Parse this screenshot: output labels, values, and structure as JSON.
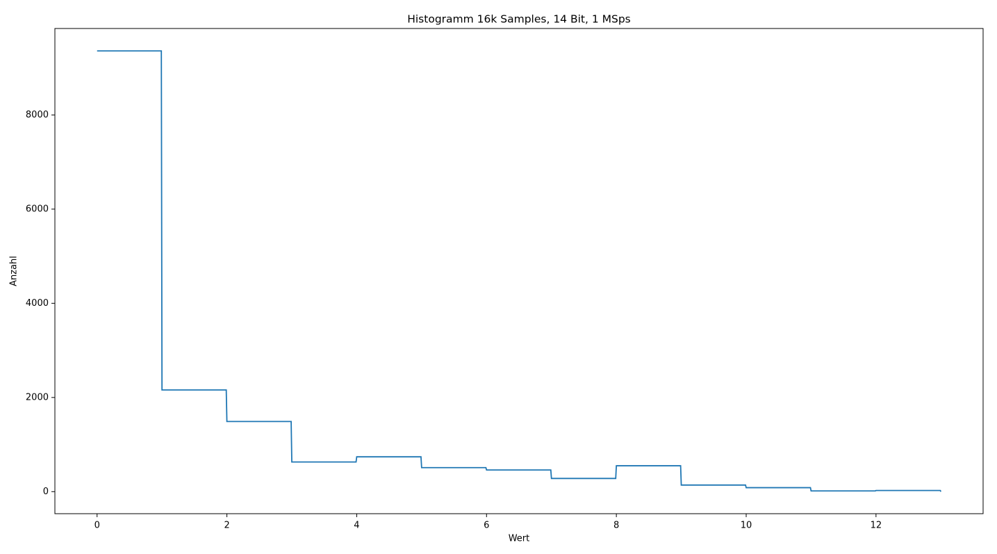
{
  "chart_data": {
    "type": "line",
    "title": "Histogramm 16k Samples, 14 Bit, 1 MSps",
    "xlabel": "Wert",
    "ylabel": "Anzahl",
    "x": [
      0,
      0.99,
      1,
      1.99,
      2,
      2.99,
      3,
      3.99,
      4,
      4.99,
      5,
      5.99,
      6,
      6.99,
      7,
      7.99,
      8,
      8.99,
      9,
      9.99,
      10,
      10.99,
      11,
      11.99,
      12,
      12.99,
      13
    ],
    "series": [
      {
        "name": "Anzahl",
        "color": "#1f77b4",
        "values": [
          9360,
          9360,
          2160,
          2160,
          1490,
          1490,
          630,
          630,
          740,
          740,
          510,
          510,
          460,
          460,
          280,
          280,
          550,
          550,
          140,
          140,
          85,
          85,
          15,
          15,
          25,
          25,
          0
        ]
      }
    ],
    "xlim": [
      -0.65,
      13.65
    ],
    "ylim": [
      -468,
      9836
    ],
    "xticks": [
      0,
      2,
      4,
      6,
      8,
      10,
      12
    ],
    "yticks": [
      0,
      2000,
      4000,
      6000,
      8000
    ],
    "grid": false
  }
}
